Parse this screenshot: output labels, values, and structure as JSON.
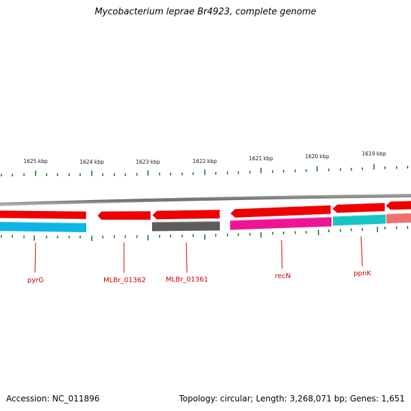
{
  "title": "Mycobacterium leprae Br4923, complete genome",
  "footer": {
    "accession": "Accession: NC_011896",
    "summary": "Topology: circular; Length: 3,268,071 bp; Genes: 1,651"
  },
  "scale_labels": [
    "1625 kbp",
    "1624 kbp",
    "1623 kbp",
    "1622 kbp",
    "1621 kbp",
    "1620 kbp",
    "1619 kbp"
  ],
  "gene_labels": [
    "pyrG",
    "MLBr_01362",
    "MLBr_01361",
    "recN",
    "ppnK"
  ],
  "colors": {
    "backbone": "#808080",
    "cds": "#ee0000",
    "tick": "#1a7a1a",
    "label": "#cc0000",
    "cog_blue": "#0fb4e6",
    "cog_gray": "#5c5c5c",
    "cog_magenta": "#ee1493",
    "cog_cyan": "#18c4c4",
    "cog_salmon": "#f07070"
  }
}
